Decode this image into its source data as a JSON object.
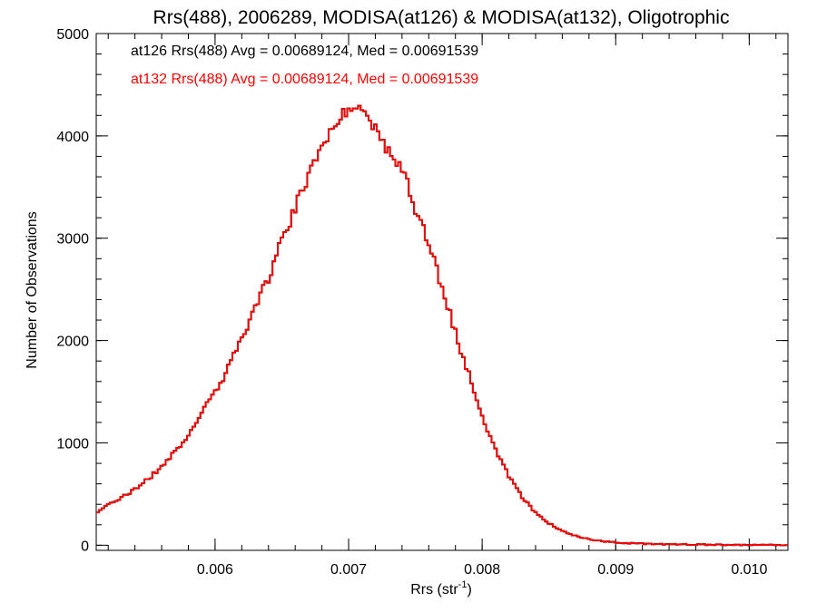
{
  "chart_data": {
    "type": "histogram",
    "title": "Rrs(488), 2006289, MODISA(at126) & MODISA(at132), Oligotrophic",
    "xlabel": "Rrs (str",
    "xlabel_sup": "-1",
    "xlabel_close": ")",
    "ylabel": "Number of Observations",
    "xlim": [
      0.00511,
      0.01029
    ],
    "ylim": [
      -50,
      5000
    ],
    "x_ticks": [
      0.006,
      0.007,
      0.008,
      0.009,
      0.01
    ],
    "x_tick_labels": [
      "0.006",
      "0.007",
      "0.008",
      "0.009",
      "0.010"
    ],
    "y_ticks": [
      0,
      1000,
      2000,
      3000,
      4000,
      5000
    ],
    "y_tick_labels": [
      "0",
      "1000",
      "2000",
      "3000",
      "4000",
      "5000"
    ],
    "x_minor_step": 0.0002,
    "y_minor_step": 200,
    "grid": false,
    "annotations": [
      {
        "text": "at126 Rrs(488) Avg = 0.00689124, Med = 0.00691539",
        "color": "#000000"
      },
      {
        "text": "at132 Rrs(488) Avg = 0.00689124, Med = 0.00691539",
        "color": "#ff0000"
      }
    ],
    "bin_width": 2e-05,
    "series": [
      {
        "color": "#000000",
        "x": [
          0.00511,
          0.00521,
          0.00531,
          0.00541,
          0.00551,
          0.00561,
          0.00571,
          0.00581,
          0.00591,
          0.00601,
          0.00611,
          0.00621,
          0.00631,
          0.00641,
          0.00651,
          0.00661,
          0.00671,
          0.00681,
          0.00691,
          0.00701,
          0.00711,
          0.00721,
          0.00731,
          0.00741,
          0.00751,
          0.00761,
          0.00771,
          0.00781,
          0.00791,
          0.00801,
          0.00811,
          0.00821,
          0.00831,
          0.00841,
          0.00851,
          0.00861,
          0.00871,
          0.00881,
          0.00891,
          0.00901,
          0.00911,
          0.00921,
          0.00931,
          0.00941,
          0.00951,
          0.00961,
          0.00971,
          0.00981,
          0.00991,
          0.01001,
          0.01011,
          0.01021,
          0.01029
        ],
        "y": [
          300,
          420,
          470,
          560,
          660,
          780,
          930,
          1100,
          1310,
          1520,
          1760,
          2030,
          2330,
          2650,
          3000,
          3330,
          3650,
          3950,
          4160,
          4290,
          4250,
          4080,
          3800,
          3650,
          3270,
          2900,
          2460,
          2040,
          1620,
          1230,
          910,
          650,
          450,
          310,
          205,
          130,
          85,
          55,
          37,
          26,
          19,
          14,
          11,
          9,
          8,
          7,
          6,
          5,
          4,
          3,
          2,
          2,
          2
        ]
      },
      {
        "color": "#ff0000",
        "x": [
          0.00511,
          0.00521,
          0.00531,
          0.00541,
          0.00551,
          0.00561,
          0.00571,
          0.00581,
          0.00591,
          0.00601,
          0.00611,
          0.00621,
          0.00631,
          0.00641,
          0.00651,
          0.00661,
          0.00671,
          0.00681,
          0.00691,
          0.00701,
          0.00711,
          0.00721,
          0.00731,
          0.00741,
          0.00751,
          0.00761,
          0.00771,
          0.00781,
          0.00791,
          0.00801,
          0.00811,
          0.00821,
          0.00831,
          0.00841,
          0.00851,
          0.00861,
          0.00871,
          0.00881,
          0.00891,
          0.00901,
          0.00911,
          0.00921,
          0.00931,
          0.00941,
          0.00951,
          0.00961,
          0.00971,
          0.00981,
          0.00991,
          0.01001,
          0.01011,
          0.01021,
          0.01029
        ],
        "y": [
          300,
          420,
          470,
          560,
          660,
          780,
          930,
          1100,
          1310,
          1520,
          1760,
          2030,
          2330,
          2650,
          3000,
          3330,
          3650,
          3950,
          4160,
          4290,
          4250,
          4080,
          3800,
          3650,
          3270,
          2900,
          2460,
          2040,
          1620,
          1230,
          910,
          650,
          450,
          310,
          205,
          130,
          85,
          55,
          37,
          26,
          19,
          14,
          11,
          9,
          8,
          7,
          6,
          5,
          4,
          3,
          2,
          2,
          2
        ]
      }
    ]
  }
}
